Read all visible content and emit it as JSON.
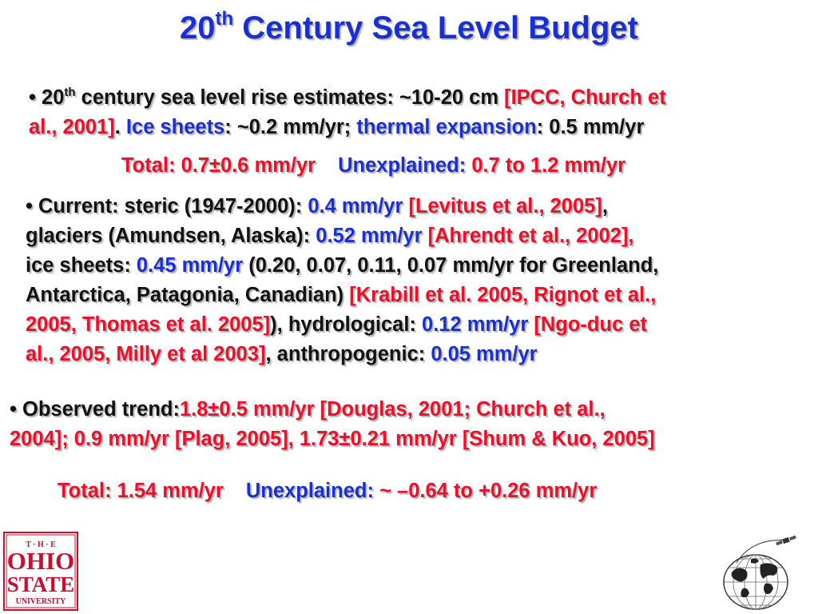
{
  "title": {
    "base": "20",
    "sup": "th",
    "rest": " Century Sea Level Budget"
  },
  "section1": {
    "bullet": "• 20",
    "sup": "th",
    "text1": " century sea level rise estimates: ~10-20 cm ",
    "ref1a": "[IPCC, Church et",
    "ref1b": "al., 2001]",
    "dot": ". ",
    "ice_label": "Ice sheets",
    "ice_value": ": ~0.2 mm/yr; ",
    "thermal_label": "thermal expansion",
    "thermal_value": ": 0.5 mm/yr"
  },
  "total1": {
    "total": "Total: 0.7±0.6 mm/yr",
    "unexplained_label": "Unexplained:",
    "unexplained_value": " 0.7 to 1.2 mm/yr"
  },
  "section2": {
    "l1_a": "•  Current:  steric (1947-2000): ",
    "l1_b": "0.4 mm/yr",
    "l1_c": " [Levitus et al., 2005]",
    "l1_d": ",",
    "l2_a": "glaciers (Amundsen, Alaska): ",
    "l2_b": "0.52 mm/yr",
    "l2_c": " [Ahrendt et al., 2002],",
    "l3_a": "ice sheets: ",
    "l3_b": "0.45 mm/yr",
    "l3_c": " (0.20, 0.07, 0.11, 0.07 mm/yr for Greenland,",
    "l4_a": "Antarctica, Patagonia, Canadian)",
    "l4_b": " [Krabill et al. 2005, Rignot et al.,",
    "l5_a": "2005, Thomas et al. 2005]",
    "l5_b": "), hydrological: ",
    "l5_c": "0.12 mm/yr",
    "l5_d": " [Ngo-duc et",
    "l6_a": "al., 2005, Milly et al 2003]",
    "l6_b": ", anthropogenic: ",
    "l6_c": "0.05 mm/yr"
  },
  "section3": {
    "l1_a": "• Observed trend:",
    "l1_b": "1.8±0.5 mm/yr [Douglas, 2001; Church et al.,",
    "l2": "2004]; 0.9 mm/yr [Plag, 2005], 1.73±0.21 mm/yr [Shum & Kuo, 2005]"
  },
  "total2": {
    "total": "Total: 1.54 mm/yr",
    "unexplained_label": "Unexplained:",
    "unexplained_value": " ~ –0.64 to +0.26 mm/yr"
  },
  "logo": {
    "line1": "T · H · E",
    "line2": "OHIO",
    "line3": "STATE",
    "line4": "UNIVERSITY"
  },
  "colors": {
    "title_blue": "#1a2fd0",
    "reference_red": "#e8102a",
    "osu_scarlet": "#c8102e",
    "text": "#111111"
  },
  "icons": {
    "globe": "globe-satellite-icon"
  }
}
